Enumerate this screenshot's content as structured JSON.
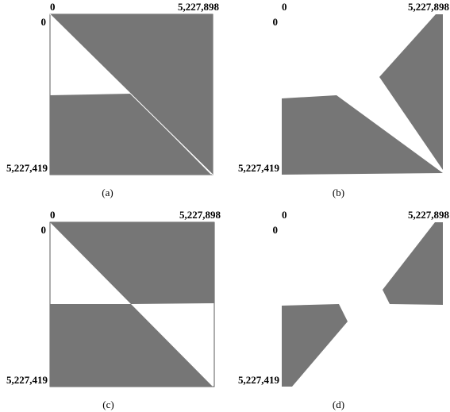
{
  "panels": [
    {
      "x_start": "0",
      "x_end": "5,227,898",
      "y_start": "0",
      "y_end": "5,227,419",
      "caption": "(a)"
    },
    {
      "x_start": "0",
      "x_end": "5,227,898",
      "y_start": "0",
      "y_end": "5,227,419",
      "caption": "(b)"
    },
    {
      "x_start": "0",
      "x_end": "5,227,898",
      "y_start": "0",
      "y_end": "5,227,419",
      "caption": "(c)"
    },
    {
      "x_start": "0",
      "x_end": "5,227,898",
      "y_start": "0",
      "y_end": "5,227,419",
      "caption": "(d)"
    }
  ]
}
